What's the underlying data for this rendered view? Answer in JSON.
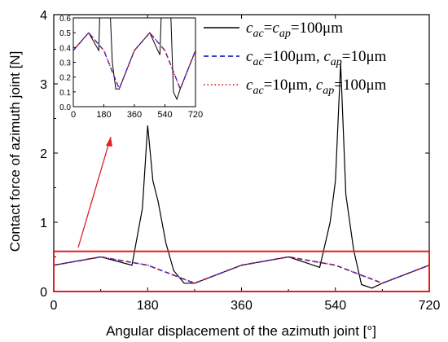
{
  "chart_data": {
    "type": "line",
    "xlabel": "Angular displacement of the azimuth joint [°]",
    "ylabel": "Contact force of azimuth joint [N]",
    "xlim": [
      0,
      720
    ],
    "ylim": [
      0,
      4
    ],
    "xticks": [
      "0",
      "180",
      "360",
      "540",
      "720"
    ],
    "yticks": [
      "0",
      "1",
      "2",
      "3",
      "4"
    ],
    "legend_position": "top-right",
    "series": [
      {
        "name_parts": {
          "sym1": "c",
          "sub1": "ac",
          "mid": "=",
          "sym2": "c",
          "sub2": "ap",
          "tail": "=100μm"
        },
        "color": "#000000",
        "style": "solid",
        "x": [
          0,
          90,
          150,
          170,
          180,
          190,
          200,
          215,
          230,
          250,
          270,
          360,
          450,
          510,
          530,
          540,
          550,
          560,
          575,
          590,
          610,
          630,
          720
        ],
        "values": [
          0.38,
          0.5,
          0.38,
          1.2,
          2.4,
          1.6,
          1.3,
          0.7,
          0.3,
          0.12,
          0.12,
          0.38,
          0.5,
          0.35,
          1.0,
          1.6,
          3.3,
          1.4,
          0.6,
          0.1,
          0.05,
          0.12,
          0.38
        ]
      },
      {
        "name_parts": {
          "sym1": "c",
          "sub1": "ac",
          "mid": "=100μm, ",
          "sym2": "c",
          "sub2": "ap",
          "tail": "=10μm"
        },
        "color": "#1f1fd6",
        "style": "dashed",
        "x": [
          0,
          90,
          180,
          270,
          360,
          450,
          540,
          630,
          720
        ],
        "values": [
          0.38,
          0.5,
          0.38,
          0.12,
          0.38,
          0.5,
          0.38,
          0.12,
          0.38
        ]
      },
      {
        "name_parts": {
          "sym1": "c",
          "sub1": "ac",
          "mid": "=10μm, ",
          "sym2": "c",
          "sub2": "ap",
          "tail": "=100μm"
        },
        "color": "#e02020",
        "style": "dotted",
        "x": [
          0,
          90,
          180,
          270,
          360,
          450,
          540,
          630,
          720
        ],
        "values": [
          0.38,
          0.5,
          0.38,
          0.12,
          0.38,
          0.5,
          0.38,
          0.12,
          0.38
        ]
      }
    ],
    "inset": {
      "xlim": [
        0,
        720
      ],
      "ylim": [
        0,
        0.6
      ],
      "xticks": [
        "0",
        "180",
        "360",
        "540",
        "720"
      ],
      "yticks": [
        "0.0",
        "0.1",
        "0.2",
        "0.3",
        "0.4",
        "0.5",
        "0.6"
      ]
    },
    "annotations": {
      "zoom_box": {
        "x0": 0,
        "x1": 720,
        "y0": 0,
        "y1": 0.58,
        "color": "#e02020"
      },
      "arrow_color": "#e02020"
    }
  }
}
